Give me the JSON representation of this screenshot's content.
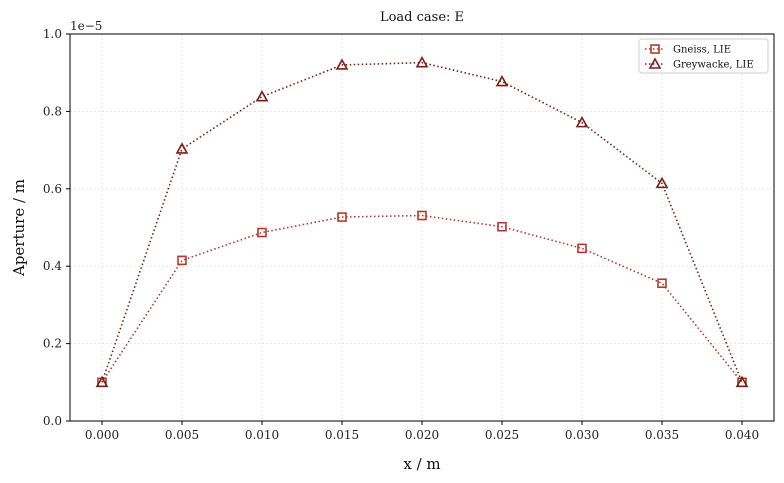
{
  "chart_data": {
    "type": "line",
    "title": "Load case: E",
    "xlabel": "x / m",
    "ylabel": "Aperture / m",
    "y_scale_label": "1e−5",
    "xlim": [
      -0.002,
      0.042
    ],
    "ylim": [
      0.0,
      1.0
    ],
    "x_ticks": [
      "0.000",
      "0.005",
      "0.010",
      "0.015",
      "0.020",
      "0.025",
      "0.030",
      "0.035",
      "0.040"
    ],
    "y_ticks": [
      "0.0",
      "0.2",
      "0.4",
      "0.6",
      "0.8",
      "1.0"
    ],
    "grid": true,
    "legend_position": "top-right",
    "x": [
      0.0,
      0.005,
      0.01,
      0.015,
      0.02,
      0.025,
      0.03,
      0.035,
      0.04
    ],
    "series": [
      {
        "name": "Gneiss, LIE",
        "marker": "square",
        "color": "#b03a2e",
        "values": [
          0.1,
          0.415,
          0.487,
          0.527,
          0.531,
          0.502,
          0.446,
          0.356,
          0.1
        ]
      },
      {
        "name": "Greywacke, LIE",
        "marker": "triangle",
        "color": "#7b1f14",
        "values": [
          0.1,
          0.703,
          0.838,
          0.92,
          0.926,
          0.877,
          0.771,
          0.614,
          0.1
        ]
      }
    ]
  }
}
